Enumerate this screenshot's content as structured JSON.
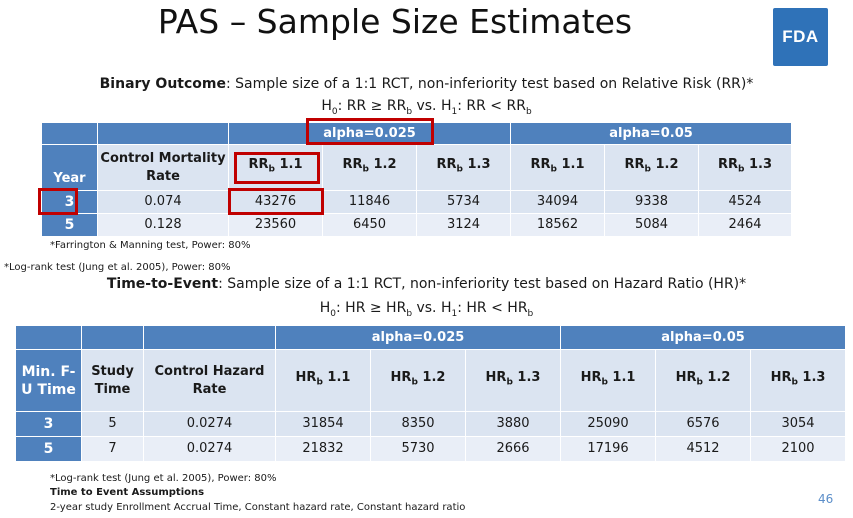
{
  "title": "PAS – Sample Size Estimates",
  "logo": {
    "text": "FDA"
  },
  "binary": {
    "subtitle_bold": "Binary Outcome",
    "subtitle_rest": ": Sample size of a 1:1 RCT, non-inferiority test based on Relative Risk (RR)*",
    "hyp": {
      "h0": "H",
      "s0": "0",
      "a": ": RR ≥ RR",
      "sb1": "b",
      "b": " vs. H",
      "s1": "1",
      "c": ": RR < RR",
      "sb2": "b"
    },
    "alpha1": "alpha=0.025",
    "alpha2": "alpha=0.05",
    "col_control": "Control Mortality Rate",
    "col_year": "Year",
    "rr_prefix": "RR",
    "rr_sub": "b",
    "rr_labels": [
      " 1.1",
      " 1.2",
      " 1.3",
      " 1.1",
      " 1.2",
      " 1.3"
    ],
    "rows": [
      {
        "year": "3",
        "rate": "0.074",
        "vals": [
          "43276",
          "11846",
          "5734",
          "34094",
          "9338",
          "4524"
        ]
      },
      {
        "year": "5",
        "rate": "0.128",
        "vals": [
          "23560",
          "6450",
          "3124",
          "18562",
          "5084",
          "2464"
        ]
      }
    ],
    "footnote1": "*Farrington & Manning test, Power: 80%",
    "footnote2": "*Log-rank test (Jung et al. 2005), Power: 80%"
  },
  "tte": {
    "subtitle_bold": "Time-to-Event",
    "subtitle_rest": ": Sample size of a 1:1 RCT, non-inferiority test based on Hazard Ratio (HR)*",
    "hyp": {
      "h0": "H",
      "s0": "0",
      "a": ": HR ≥ HR",
      "sb1": "b",
      "b": " vs. H",
      "s1": "1",
      "c": ": HR < HR",
      "sb2": "b"
    },
    "alpha1": "alpha=0.025",
    "alpha2": "alpha=0.05",
    "col_minfu": "Min. F-U Time",
    "col_study": "Study Time",
    "col_control": "Control Hazard Rate",
    "hr_prefix": "HR",
    "hr_sub": "b",
    "hr_labels": [
      " 1.1",
      " 1.2",
      " 1.3",
      " 1.1",
      " 1.2",
      " 1.3"
    ],
    "rows": [
      {
        "minfu": "3",
        "study": "5",
        "rate": "0.0274",
        "vals": [
          "31854",
          "8350",
          "3880",
          "25090",
          "6576",
          "3054"
        ]
      },
      {
        "minfu": "5",
        "study": "7",
        "rate": "0.0274",
        "vals": [
          "21832",
          "5730",
          "2666",
          "17196",
          "4512",
          "2100"
        ]
      }
    ],
    "footnote1": "*Log-rank test (Jung et al. 2005), Power: 80%",
    "footnote2": "Time to Event Assumptions",
    "footnote3": "2-year study Enrollment Accrual Time, Constant hazard rate, Constant hazard ratio"
  },
  "page_number": "46"
}
